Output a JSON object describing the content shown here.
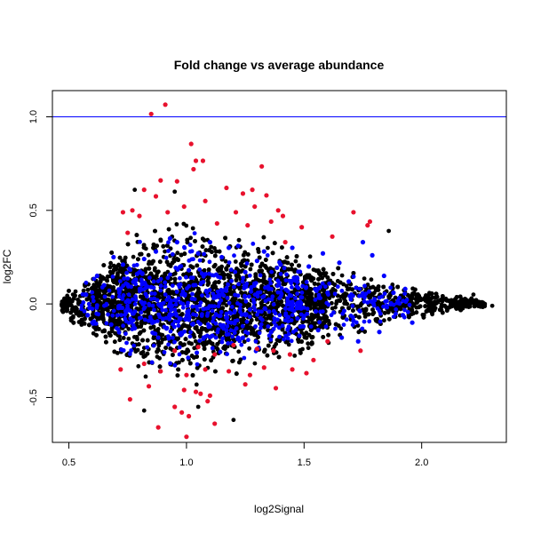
{
  "chart_data": {
    "type": "scatter",
    "title": "Fold change vs average abundance",
    "xlabel": "log2Signal",
    "ylabel": "log2FC",
    "xlim": [
      0.43,
      2.36
    ],
    "ylim": [
      -0.74,
      1.14
    ],
    "x_ticks": [
      0.5,
      1.0,
      1.5,
      2.0
    ],
    "x_tick_labels": [
      "0.5",
      "1.0",
      "1.5",
      "2.0"
    ],
    "y_ticks": [
      -0.5,
      0.0,
      0.5,
      1.0
    ],
    "y_tick_labels": [
      "-0.5",
      "0.0",
      "0.5",
      "1.0"
    ],
    "reference_line": {
      "y": 1.0,
      "color": "#0000ff"
    },
    "grid": false,
    "colors": {
      "not_significant": "#000000",
      "fold_change_highlight": "#0000ff",
      "significant": "#e8112d"
    },
    "series": [
      {
        "color": "#e8112d",
        "points": [
          [
            0.85,
            1.015
          ],
          [
            0.91,
            1.065
          ],
          [
            1.02,
            0.855
          ],
          [
            1.04,
            0.765
          ],
          [
            1.07,
            0.765
          ],
          [
            1.03,
            0.72
          ],
          [
            1.32,
            0.735
          ],
          [
            0.82,
            0.61
          ],
          [
            0.87,
            0.575
          ],
          [
            0.89,
            0.66
          ],
          [
            0.96,
            0.655
          ],
          [
            1.17,
            0.62
          ],
          [
            1.24,
            0.59
          ],
          [
            1.28,
            0.61
          ],
          [
            1.34,
            0.58
          ],
          [
            1.39,
            0.5
          ],
          [
            1.41,
            0.47
          ],
          [
            0.77,
            0.5
          ],
          [
            0.8,
            0.47
          ],
          [
            0.92,
            0.49
          ],
          [
            0.99,
            0.52
          ],
          [
            1.08,
            0.55
          ],
          [
            1.21,
            0.49
          ],
          [
            1.29,
            0.52
          ],
          [
            1.36,
            0.44
          ],
          [
            1.49,
            0.41
          ],
          [
            1.71,
            0.49
          ],
          [
            1.78,
            0.44
          ],
          [
            1.77,
            0.42
          ],
          [
            0.73,
            0.49
          ],
          [
            0.75,
            0.38
          ],
          [
            1.13,
            0.43
          ],
          [
            1.26,
            0.42
          ],
          [
            1.42,
            0.33
          ],
          [
            1.62,
            0.36
          ],
          [
            0.95,
            -0.25
          ],
          [
            1.05,
            -0.23
          ],
          [
            1.12,
            -0.27
          ],
          [
            1.2,
            -0.22
          ],
          [
            1.3,
            -0.24
          ],
          [
            1.37,
            -0.25
          ],
          [
            1.44,
            -0.27
          ],
          [
            1.6,
            -0.2
          ],
          [
            1.74,
            -0.25
          ],
          [
            0.72,
            -0.35
          ],
          [
            0.82,
            -0.32
          ],
          [
            0.89,
            -0.36
          ],
          [
            1.0,
            -0.38
          ],
          [
            1.08,
            -0.35
          ],
          [
            1.18,
            -0.36
          ],
          [
            1.27,
            -0.38
          ],
          [
            1.33,
            -0.34
          ],
          [
            1.45,
            -0.35
          ],
          [
            1.51,
            -0.37
          ],
          [
            0.84,
            -0.44
          ],
          [
            0.99,
            -0.46
          ],
          [
            1.04,
            -0.47
          ],
          [
            1.1,
            -0.49
          ],
          [
            1.25,
            -0.43
          ],
          [
            1.38,
            -0.45
          ],
          [
            0.76,
            -0.51
          ],
          [
            0.95,
            -0.55
          ],
          [
            1.06,
            -0.48
          ],
          [
            1.09,
            -0.52
          ],
          [
            0.98,
            -0.58
          ],
          [
            1.01,
            -0.6
          ],
          [
            1.12,
            -0.64
          ],
          [
            0.88,
            -0.66
          ],
          [
            1.0,
            -0.71
          ],
          [
            1.54,
            -0.3
          ]
        ]
      },
      {
        "color": "#0000ff",
        "points": [
          [
            0.93,
            0.35
          ],
          [
            0.96,
            0.33
          ],
          [
            1.1,
            0.33
          ],
          [
            1.18,
            0.3
          ],
          [
            1.22,
            0.31
          ],
          [
            1.33,
            0.28
          ],
          [
            1.45,
            0.3
          ],
          [
            1.58,
            0.27
          ],
          [
            1.65,
            0.22
          ],
          [
            1.75,
            0.33
          ],
          [
            1.79,
            0.26
          ],
          [
            1.84,
            0.15
          ],
          [
            1.88,
            0.06
          ],
          [
            1.93,
            0.08
          ],
          [
            0.69,
            0.25
          ],
          [
            0.73,
            0.21
          ],
          [
            0.82,
            0.24
          ],
          [
            0.87,
            0.28
          ],
          [
            1.05,
            0.27
          ],
          [
            1.15,
            0.25
          ],
          [
            1.3,
            0.23
          ],
          [
            1.4,
            0.21
          ],
          [
            1.52,
            0.2
          ],
          [
            0.62,
            0.15
          ],
          [
            0.65,
            0.1
          ],
          [
            0.79,
            0.16
          ],
          [
            1.01,
            0.18
          ],
          [
            1.25,
            0.17
          ],
          [
            1.47,
            0.14
          ],
          [
            1.69,
            0.12
          ],
          [
            1.92,
            -0.06
          ],
          [
            1.96,
            -0.1
          ],
          [
            1.82,
            -0.15
          ],
          [
            1.73,
            -0.2
          ],
          [
            1.66,
            -0.18
          ],
          [
            1.56,
            -0.14
          ],
          [
            1.48,
            -0.17
          ],
          [
            1.36,
            -0.15
          ],
          [
            1.24,
            -0.18
          ],
          [
            1.11,
            -0.17
          ],
          [
            0.98,
            -0.16
          ],
          [
            0.88,
            -0.18
          ],
          [
            0.78,
            -0.13
          ],
          [
            0.68,
            -0.11
          ],
          [
            0.58,
            -0.06
          ],
          [
            0.57,
            0.05
          ],
          [
            0.6,
            -0.1
          ],
          [
            1.03,
            0.1
          ],
          [
            1.35,
            0.08
          ],
          [
            1.6,
            0.06
          ],
          [
            0.9,
            -0.08
          ],
          [
            1.19,
            -0.1
          ],
          [
            1.43,
            -0.07
          ],
          [
            1.71,
            -0.09
          ],
          [
            0.85,
            0.09
          ],
          [
            1.14,
            0.04
          ],
          [
            1.55,
            -0.04
          ],
          [
            1.8,
            0.02
          ],
          [
            0.72,
            -0.02
          ],
          [
            1.27,
            -0.03
          ]
        ]
      }
    ],
    "background_cloud": {
      "color": "#000000",
      "description_only": false,
      "envelope": [
        [
          0.47,
          -0.06,
          0.06
        ],
        [
          0.55,
          -0.14,
          0.12
        ],
        [
          0.65,
          -0.24,
          0.25
        ],
        [
          0.75,
          -0.34,
          0.36
        ],
        [
          0.85,
          -0.42,
          0.44
        ],
        [
          0.95,
          -0.47,
          0.46
        ],
        [
          1.05,
          -0.45,
          0.42
        ],
        [
          1.15,
          -0.4,
          0.4
        ],
        [
          1.25,
          -0.37,
          0.38
        ],
        [
          1.35,
          -0.33,
          0.35
        ],
        [
          1.45,
          -0.3,
          0.32
        ],
        [
          1.55,
          -0.27,
          0.28
        ],
        [
          1.65,
          -0.22,
          0.24
        ],
        [
          1.75,
          -0.18,
          0.2
        ],
        [
          1.85,
          -0.13,
          0.14
        ],
        [
          1.95,
          -0.09,
          0.1
        ],
        [
          2.05,
          -0.06,
          0.07
        ],
        [
          2.15,
          -0.04,
          0.05
        ],
        [
          2.25,
          -0.03,
          0.03
        ]
      ],
      "n_points": 5200,
      "outliers": [
        [
          2.3,
          -0.01
        ],
        [
          2.22,
          0.05
        ],
        [
          0.78,
          0.61
        ],
        [
          0.95,
          0.6
        ],
        [
          1.86,
          0.39
        ],
        [
          0.82,
          -0.57
        ],
        [
          1.2,
          -0.62
        ],
        [
          1.05,
          -0.55
        ]
      ]
    }
  }
}
